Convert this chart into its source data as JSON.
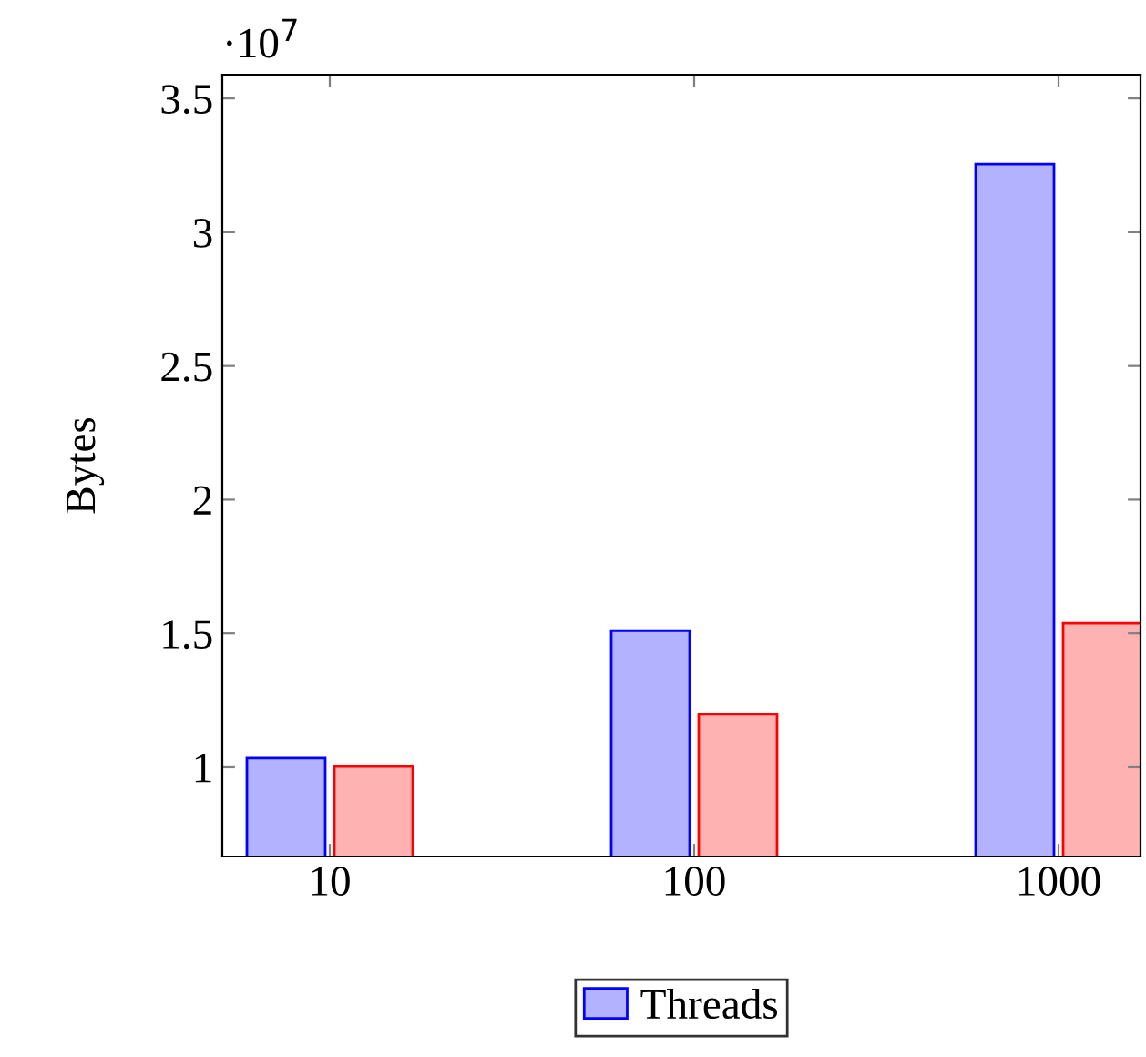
{
  "chart_data": {
    "type": "bar",
    "ylabel": "Bytes",
    "annotations": [
      "·10$^{7}$"
    ],
    "categories": [
      "10",
      "100",
      "1000"
    ],
    "series": [
      {
        "name": "Threads",
        "color": "#0000ff",
        "values": [
          1.034,
          1.51,
          3.255
        ]
      },
      {
        "color": "#ff0000",
        "values": [
          1.003,
          1.198,
          1.538
        ]
      }
    ],
    "ylim": [
      0.666,
      3.589
    ],
    "yticks": [
      1,
      1.5,
      2,
      2.5,
      3,
      3.5
    ],
    "grid": false,
    "legend": "bottom"
  }
}
